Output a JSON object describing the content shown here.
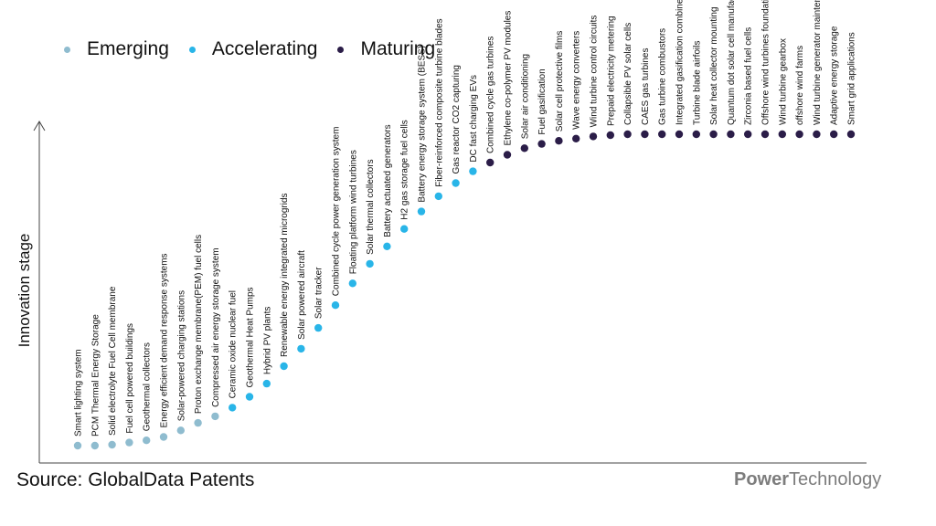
{
  "legend": [
    {
      "label": "Emerging",
      "color": "#8fbccf"
    },
    {
      "label": "Accelerating",
      "color": "#29b5e8"
    },
    {
      "label": "Maturing",
      "color": "#2b1d48"
    }
  ],
  "source": "Source: GlobalData Patents",
  "brand": {
    "part1": "Power",
    "part2": "Technology"
  },
  "chart_data": {
    "type": "scatter",
    "title": "",
    "ylabel": "Innovation stage",
    "xlabel": "",
    "grid": false,
    "legend_position": "top-left",
    "stages": [
      "Emerging",
      "Accelerating",
      "Maturing"
    ],
    "points": [
      {
        "label": "Smart lighting system",
        "stage": "Emerging",
        "level": 0.0
      },
      {
        "label": "PCM Thermal Energy Storage",
        "stage": "Emerging",
        "level": 0.0
      },
      {
        "label": "Solid electrolyte Fuel Cell membrane",
        "stage": "Emerging",
        "level": 0.003
      },
      {
        "label": "Fuel cell powered buildings",
        "stage": "Emerging",
        "level": 0.01
      },
      {
        "label": "Geothermal collectors",
        "stage": "Emerging",
        "level": 0.017
      },
      {
        "label": "Energy efficient demand response systems",
        "stage": "Emerging",
        "level": 0.028
      },
      {
        "label": "Solar-powered charging stations",
        "stage": "Emerging",
        "level": 0.049
      },
      {
        "label": "Proton exchange membrane(PEM) fuel cells",
        "stage": "Emerging",
        "level": 0.073
      },
      {
        "label": "Compressed air energy storage system",
        "stage": "Emerging",
        "level": 0.094
      },
      {
        "label": "Ceramic oxide nuclear fuel",
        "stage": "Accelerating",
        "level": 0.122
      },
      {
        "label": "Geothermal Heat Pumps",
        "stage": "Accelerating",
        "level": 0.157
      },
      {
        "label": "Hybrid PV plants",
        "stage": "Accelerating",
        "level": 0.199
      },
      {
        "label": "Renewable energy integrated microgrids",
        "stage": "Accelerating",
        "level": 0.255
      },
      {
        "label": "Solar powered aircraft",
        "stage": "Accelerating",
        "level": 0.311
      },
      {
        "label": "Solar tracker",
        "stage": "Accelerating",
        "level": 0.378
      },
      {
        "label": "Combined cycle power generation system",
        "stage": "Accelerating",
        "level": 0.451
      },
      {
        "label": "Floating platform wind turbines",
        "stage": "Accelerating",
        "level": 0.521
      },
      {
        "label": "Solar thermal collectors",
        "stage": "Accelerating",
        "level": 0.584
      },
      {
        "label": "Battery actuated generators",
        "stage": "Accelerating",
        "level": 0.64
      },
      {
        "label": "H2 gas storage fuel cells",
        "stage": "Accelerating",
        "level": 0.696
      },
      {
        "label": "Battery energy storage system (BESS)",
        "stage": "Accelerating",
        "level": 0.752
      },
      {
        "label": "Fiber-reinforced composite turbine blades",
        "stage": "Accelerating",
        "level": 0.801
      },
      {
        "label": "Gas reactor CO2 capturing",
        "stage": "Accelerating",
        "level": 0.843
      },
      {
        "label": "DC fast charging EVs",
        "stage": "Accelerating",
        "level": 0.881
      },
      {
        "label": "Combined cycle gas turbines",
        "stage": "Maturing",
        "level": 0.909
      },
      {
        "label": "Ethylene co-polymer PV modules",
        "stage": "Maturing",
        "level": 0.934
      },
      {
        "label": "Solar air conditioning",
        "stage": "Maturing",
        "level": 0.955
      },
      {
        "label": "Fuel gasification",
        "stage": "Maturing",
        "level": 0.969
      },
      {
        "label": "Solar cell protective films",
        "stage": "Maturing",
        "level": 0.979
      },
      {
        "label": "Wave energy converters",
        "stage": "Maturing",
        "level": 0.986
      },
      {
        "label": "Wind turbine control circuits",
        "stage": "Maturing",
        "level": 0.993
      },
      {
        "label": "Prepaid electricity metering",
        "stage": "Maturing",
        "level": 0.997
      },
      {
        "label": "Collapsible PV solar cells",
        "stage": "Maturing",
        "level": 1.0
      },
      {
        "label": "CAES gas turbines",
        "stage": "Maturing",
        "level": 1.0
      },
      {
        "label": "Gas turbine combustors",
        "stage": "Maturing",
        "level": 1.0
      },
      {
        "label": "Integrated gasification combined cycle",
        "stage": "Maturing",
        "level": 1.0
      },
      {
        "label": "Turbine blade airfoils",
        "stage": "Maturing",
        "level": 1.0
      },
      {
        "label": "Solar heat collector mounting",
        "stage": "Maturing",
        "level": 1.0
      },
      {
        "label": "Quantum dot solar cell manufacturing",
        "stage": "Maturing",
        "level": 1.0
      },
      {
        "label": "Zirconia based fuel cells",
        "stage": "Maturing",
        "level": 1.0
      },
      {
        "label": "Offshore wind turbines foundations",
        "stage": "Maturing",
        "level": 1.0
      },
      {
        "label": "Wind turbine gearbox",
        "stage": "Maturing",
        "level": 1.0
      },
      {
        "label": "offshore wind farms",
        "stage": "Maturing",
        "level": 1.0
      },
      {
        "label": "Wind turbine generator maintenance",
        "stage": "Maturing",
        "level": 1.0
      },
      {
        "label": "Adaptive energy storage",
        "stage": "Maturing",
        "level": 1.0
      },
      {
        "label": "Smart grid applications",
        "stage": "Maturing",
        "level": 1.0
      }
    ]
  }
}
